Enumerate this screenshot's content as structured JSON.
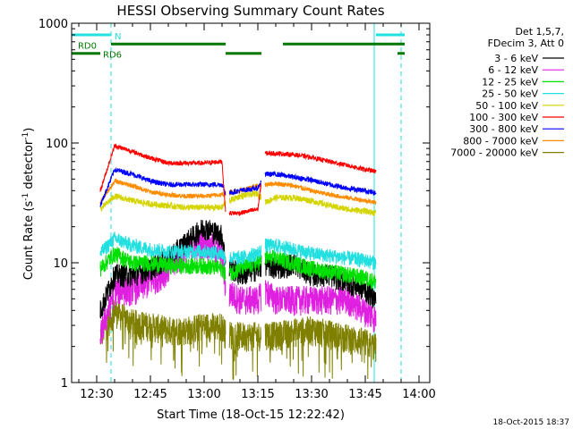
{
  "chart_data": {
    "type": "line",
    "title": "HESSI Observing Summary Count Rates",
    "xlabel": "Start Time (18-Oct-15 12:22:42)",
    "ylabel_main": "Count Rate (s",
    "ylabel_sup1": "-1",
    "ylabel_mid": " detector",
    "ylabel_sup2": "-1",
    "ylabel_end": ")",
    "yscale": "log",
    "ylim": [
      1,
      1000
    ],
    "xlim_minutes": [
      -7,
      93
    ],
    "x_tick_labels": [
      "12:30",
      "12:45",
      "13:00",
      "13:15",
      "13:30",
      "13:45",
      "14:00"
    ],
    "x_tick_minutes": [
      0,
      15,
      30,
      45,
      60,
      75,
      90
    ],
    "y_tick_labels": [
      "1",
      "10",
      "100",
      "1000"
    ],
    "y_tick_values": [
      1,
      10,
      100,
      1000
    ],
    "legend_header": [
      "Det 1,5,7,",
      "FDecim 3, Att 0"
    ],
    "timestamp": "18-Oct-2015 18:37",
    "attenuator_bars": [
      {
        "label": "N",
        "color": "#22e0e0",
        "level": 800,
        "segments": [
          [
            -7,
            4
          ],
          [
            78,
            86
          ]
        ]
      },
      {
        "label": "RD0",
        "color": "#007700",
        "level": 670,
        "segments": [
          [
            4,
            36
          ],
          [
            52,
            86
          ]
        ]
      },
      {
        "label": "RD6",
        "color": "#007700",
        "level": 560,
        "segments": [
          [
            -7,
            1
          ],
          [
            36,
            46
          ],
          [
            84,
            86
          ]
        ]
      }
    ],
    "night_lines_solid": [
      -7,
      77.5
    ],
    "night_lines_dashed": [
      4,
      85
    ],
    "data_gaps": [
      [
        36,
        37
      ],
      [
        46,
        47
      ]
    ],
    "data_window": [
      1,
      78
    ],
    "series": [
      {
        "name": "3 - 6 keV",
        "color": "#000000",
        "x": [
          1,
          5,
          10,
          15,
          20,
          25,
          30,
          35,
          36,
          40,
          45,
          47,
          50,
          55,
          60,
          65,
          70,
          75,
          78
        ],
        "y": [
          4,
          8,
          8,
          9,
          11,
          15,
          20,
          17,
          10,
          8,
          9,
          10,
          9,
          10,
          8,
          8,
          7,
          6,
          5
        ]
      },
      {
        "name": "6 - 12 keV",
        "color": "#e020e0",
        "x": [
          1,
          5,
          10,
          15,
          20,
          25,
          30,
          35,
          36,
          40,
          45,
          47,
          50,
          55,
          60,
          65,
          70,
          75,
          78
        ],
        "y": [
          2.5,
          6,
          6,
          7,
          9,
          13,
          15,
          12,
          6,
          5,
          5,
          6,
          5,
          5,
          5,
          5,
          5,
          4,
          3.5
        ]
      },
      {
        "name": "12 - 25 keV",
        "color": "#00e000",
        "x": [
          1,
          5,
          10,
          15,
          20,
          25,
          30,
          35,
          36,
          40,
          45,
          47,
          50,
          55,
          60,
          65,
          70,
          75,
          78
        ],
        "y": [
          9,
          12,
          10,
          10,
          9.5,
          9.5,
          9.5,
          9,
          8,
          9,
          10,
          11,
          11,
          10,
          9,
          8.5,
          8,
          7.5,
          7
        ]
      },
      {
        "name": "25 - 50 keV",
        "color": "#22e0e0",
        "x": [
          1,
          5,
          10,
          15,
          20,
          25,
          30,
          35,
          36,
          40,
          45,
          47,
          50,
          55,
          60,
          65,
          70,
          75,
          78
        ],
        "y": [
          12,
          16,
          14,
          13,
          12.5,
          12.5,
          12.5,
          12,
          11,
          11,
          12,
          14,
          14,
          13,
          12,
          11.5,
          11,
          10.5,
          10
        ]
      },
      {
        "name": "50 - 100 keV",
        "color": "#d4d400",
        "x": [
          1,
          5,
          10,
          15,
          20,
          25,
          30,
          35,
          36,
          40,
          45,
          47,
          50,
          55,
          60,
          65,
          70,
          75,
          78
        ],
        "y": [
          28,
          36,
          33,
          31,
          30,
          29,
          29,
          29,
          32,
          36,
          38,
          32,
          35,
          35,
          33,
          30,
          28,
          27,
          26
        ]
      },
      {
        "name": "100 - 300 keV",
        "color": "#ff0000",
        "x": [
          1,
          5,
          10,
          15,
          20,
          25,
          30,
          35,
          36,
          40,
          45,
          47,
          50,
          55,
          60,
          65,
          70,
          75,
          78
        ],
        "y": [
          40,
          95,
          85,
          75,
          68,
          68,
          68,
          70,
          26,
          26,
          28,
          82,
          82,
          80,
          76,
          70,
          65,
          60,
          58
        ]
      },
      {
        "name": "300 - 800 keV",
        "color": "#0000ff",
        "x": [
          1,
          5,
          10,
          15,
          20,
          25,
          30,
          35,
          36,
          40,
          45,
          47,
          50,
          55,
          60,
          65,
          70,
          75,
          78
        ],
        "y": [
          30,
          60,
          55,
          48,
          45,
          45,
          45,
          45,
          38,
          40,
          42,
          55,
          55,
          52,
          49,
          45,
          42,
          40,
          38
        ]
      },
      {
        "name": "800 - 7000 keV",
        "color": "#ff8c00",
        "x": [
          1,
          5,
          10,
          15,
          20,
          25,
          30,
          35,
          36,
          40,
          45,
          47,
          50,
          55,
          60,
          65,
          70,
          75,
          78
        ],
        "y": [
          32,
          48,
          44,
          39,
          37,
          36,
          36,
          37,
          38,
          40,
          44,
          45,
          46,
          44,
          40,
          37,
          35,
          33,
          32
        ]
      },
      {
        "name": "7000 - 20000 keV",
        "color": "#808000",
        "x": [
          1,
          5,
          10,
          15,
          20,
          25,
          30,
          35,
          36,
          40,
          45,
          47,
          50,
          55,
          60,
          65,
          70,
          75,
          78
        ],
        "y": [
          2.5,
          4,
          3.2,
          3,
          2.8,
          2.8,
          3,
          3,
          2.6,
          2.5,
          2.5,
          2.6,
          2.5,
          2.7,
          2.8,
          2.6,
          2.4,
          2.2,
          2
        ]
      }
    ]
  }
}
